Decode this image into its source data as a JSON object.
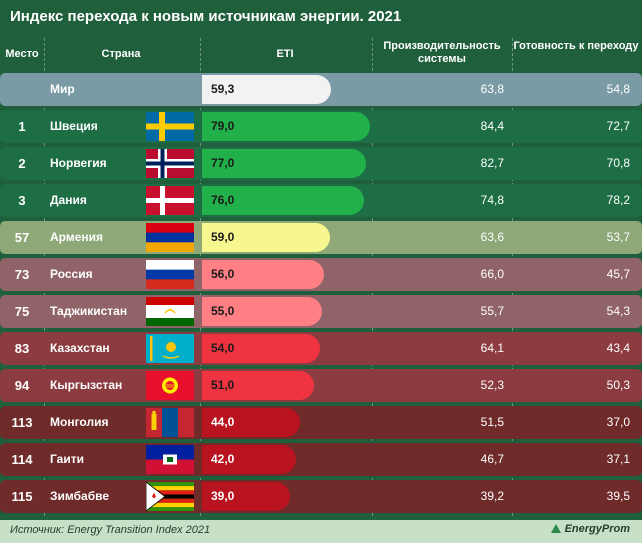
{
  "title": "Индекс перехода к новым источникам энергии. 2021",
  "headers": {
    "rank": "Место",
    "country": "Страна",
    "epi": "ETI",
    "perf": "Производительность системы",
    "ready": "Готовность к переходу"
  },
  "footer": {
    "source": "Источник: Energy Transition Index 2021",
    "logo": "EnergyProm"
  },
  "colors": {
    "background": "#1f5f3b",
    "green": "#22b04b",
    "yellow": "#f7f78f",
    "pink": "#ff7f84",
    "red": "#f03341",
    "darkred": "#b9131f",
    "white": "#f2f2f2"
  },
  "chart_data": {
    "type": "table",
    "title": "Индекс перехода к новым источникам энергии. 2021",
    "columns": [
      "Место",
      "Страна",
      "ETI",
      "Производительность системы",
      "Готовность к переходу"
    ],
    "rows": [
      {
        "rank": "",
        "country": "Мир",
        "eti": "59,3",
        "perf": "63,8",
        "ready": "54,8",
        "flag": "",
        "eti_value": 59.3,
        "bar_color": "#f2f2f2",
        "row_bg": "#7a9aa5",
        "text_dark": true
      },
      {
        "rank": "1",
        "country": "Швеция",
        "eti": "79,0",
        "perf": "84,4",
        "ready": "72,7",
        "flag": "sweden",
        "eti_value": 79.0,
        "bar_color": "#22b04b",
        "row_bg": "#1e6e45"
      },
      {
        "rank": "2",
        "country": "Норвегия",
        "eti": "77,0",
        "perf": "82,7",
        "ready": "70,8",
        "flag": "norway",
        "eti_value": 77.0,
        "bar_color": "#22b04b",
        "row_bg": "#1e6e45"
      },
      {
        "rank": "3",
        "country": "Дания",
        "eti": "76,0",
        "perf": "74,8",
        "ready": "78,2",
        "flag": "denmark",
        "eti_value": 76.0,
        "bar_color": "#22b04b",
        "row_bg": "#1e6e45"
      },
      {
        "rank": "57",
        "country": "Армения",
        "eti": "59,0",
        "perf": "63,6",
        "ready": "53,7",
        "flag": "armenia",
        "eti_value": 59.0,
        "bar_color": "#f7f78f",
        "row_bg": "#8fa878",
        "text_dark": true
      },
      {
        "rank": "73",
        "country": "Россия",
        "eti": "56,0",
        "perf": "66,0",
        "ready": "45,7",
        "flag": "russia",
        "eti_value": 56.0,
        "bar_color": "#ff7f84",
        "row_bg": "#8f6367"
      },
      {
        "rank": "75",
        "country": "Таджикистан",
        "eti": "55,0",
        "perf": "55,7",
        "ready": "54,3",
        "flag": "tajikistan",
        "eti_value": 55.0,
        "bar_color": "#ff7f84",
        "row_bg": "#8f6367"
      },
      {
        "rank": "83",
        "country": "Казахстан",
        "eti": "54,0",
        "perf": "64,1",
        "ready": "43,4",
        "flag": "kazakhstan",
        "eti_value": 54.0,
        "bar_color": "#f03341",
        "row_bg": "#8c3c40"
      },
      {
        "rank": "94",
        "country": "Кыргызстан",
        "eti": "51,0",
        "perf": "52,3",
        "ready": "50,3",
        "flag": "kyrgyzstan",
        "eti_value": 51.0,
        "bar_color": "#f03341",
        "row_bg": "#8c3c40"
      },
      {
        "rank": "113",
        "country": "Монголия",
        "eti": "44,0",
        "perf": "51,5",
        "ready": "37,0",
        "flag": "mongolia",
        "eti_value": 44.0,
        "bar_color": "#b9131f",
        "row_bg": "#6f2a2a"
      },
      {
        "rank": "114",
        "country": "Гаити",
        "eti": "42,0",
        "perf": "46,7",
        "ready": "37,1",
        "flag": "haiti",
        "eti_value": 42.0,
        "bar_color": "#b9131f",
        "row_bg": "#6f2a2a"
      },
      {
        "rank": "115",
        "country": "Зимбабве",
        "eti": "39,0",
        "perf": "39,2",
        "ready": "39,5",
        "flag": "zimbabwe",
        "eti_value": 39.0,
        "bar_color": "#b9131f",
        "row_bg": "#6f2a2a"
      }
    ]
  }
}
